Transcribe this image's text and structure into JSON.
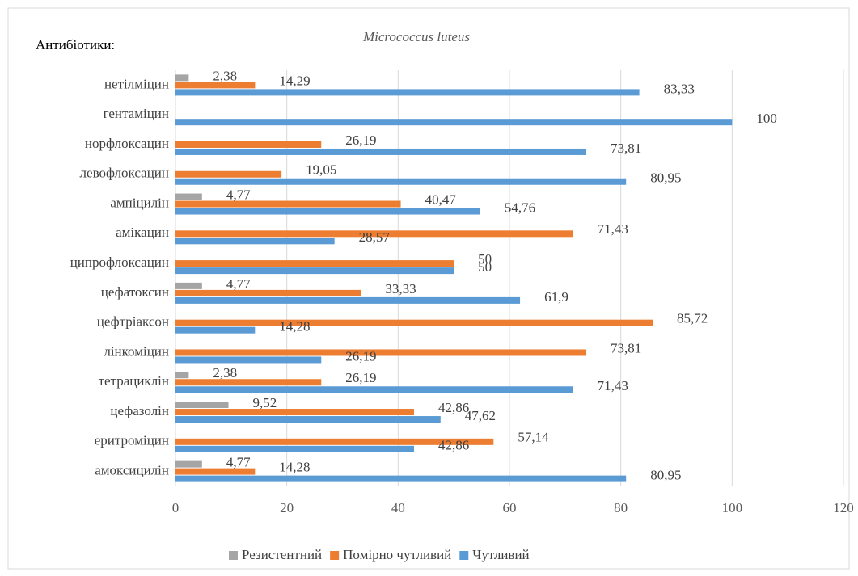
{
  "chart_data": {
    "type": "hbar",
    "title": "Micrococcus luteus",
    "ylabel": "Антибіотики:",
    "categories": [
      "нетілміцин",
      "гентаміцин",
      "норфлоксацин",
      "левофлоксацин",
      "ампіцилін",
      "амікацин",
      "ципрофлоксацин",
      "цефатоксин",
      "цефтріаксон",
      "лінкоміцин",
      "тетрациклін",
      "цефазолін",
      "еритроміцин",
      "амоксицилін"
    ],
    "series": [
      {
        "name": "Резистентний",
        "color": "#a5a5a5",
        "values": [
          2.38,
          null,
          null,
          null,
          4.77,
          null,
          null,
          4.77,
          null,
          null,
          2.38,
          9.52,
          null,
          4.77
        ],
        "value_labels": [
          "2,38",
          null,
          null,
          null,
          "4,77",
          null,
          null,
          "4,77",
          null,
          null,
          "2,38",
          "9,52",
          null,
          "4,77"
        ]
      },
      {
        "name": "Помірно чутливий",
        "color": "#ed7d31",
        "values": [
          14.29,
          null,
          26.19,
          19.05,
          40.47,
          71.43,
          50,
          33.33,
          85.72,
          73.81,
          26.19,
          42.86,
          57.14,
          14.28
        ],
        "value_labels": [
          "14,29",
          null,
          "26,19",
          "19,05",
          "40,47",
          "71,43",
          "50",
          "33,33",
          "85,72",
          "73,81",
          "26,19",
          "42,86",
          "57,14",
          "14,28"
        ]
      },
      {
        "name": "Чутливий",
        "color": "#5b9bd5",
        "values": [
          83.33,
          100,
          73.81,
          80.95,
          54.76,
          28.57,
          50,
          61.9,
          14.28,
          26.19,
          71.43,
          47.62,
          42.86,
          80.95
        ],
        "value_labels": [
          "83,33",
          "100",
          "73,81",
          "80,95",
          "54,76",
          "28,57",
          "50",
          "61,9",
          "14,28",
          "26,19",
          "71,43",
          "47,62",
          "42,86",
          "80,95"
        ]
      }
    ],
    "xlim": [
      0,
      120
    ],
    "xticks": [
      0,
      20,
      40,
      60,
      80,
      100,
      120
    ],
    "grid": true,
    "legend": "bottom"
  }
}
